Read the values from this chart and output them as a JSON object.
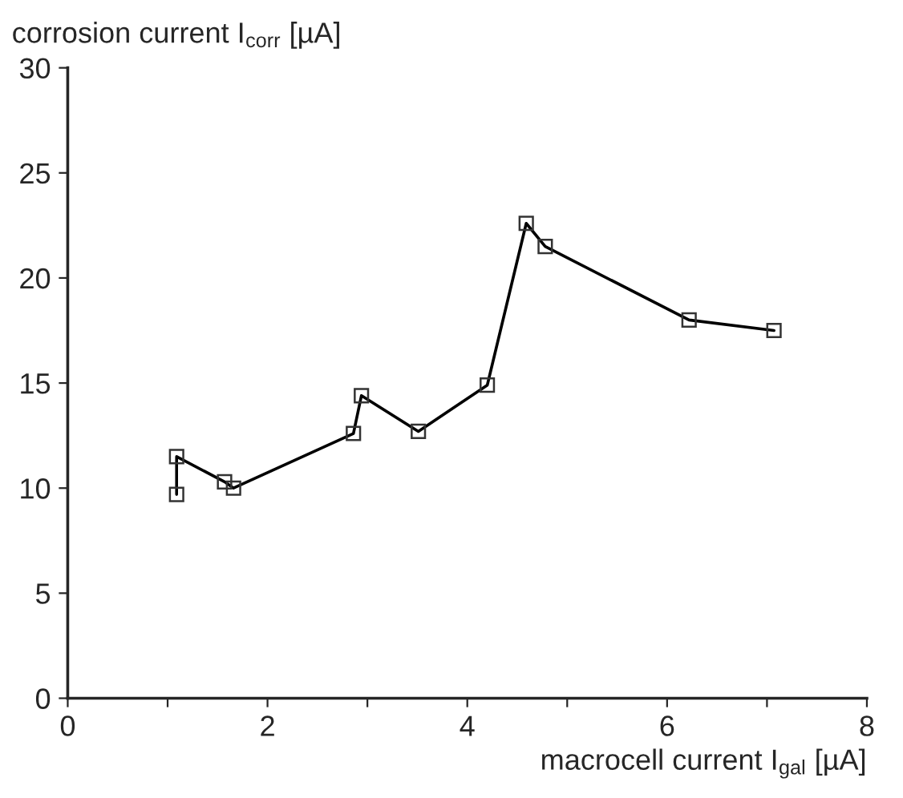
{
  "chart_data": {
    "type": "line",
    "xlabel": "macrocell current I$_{gal}$ [µA]",
    "ylabel": "corrosion current I$_{corr}$ [µA]",
    "x": [
      1.09,
      1.09,
      1.57,
      1.66,
      2.86,
      2.94,
      3.51,
      4.2,
      4.59,
      4.78,
      6.22,
      7.07
    ],
    "series": [
      {
        "color": "#000000",
        "values": [
          9.7,
          11.5,
          10.3,
          10.0,
          12.6,
          14.4,
          12.7,
          14.9,
          22.6,
          21.5,
          18.0,
          17.5
        ]
      }
    ],
    "xlim": [
      0,
      8
    ],
    "ylim": [
      0,
      30
    ],
    "xticks": [
      0,
      {
        "value": 1,
        "label": null
      },
      2,
      {
        "value": 3,
        "label": null
      },
      4,
      {
        "value": 5,
        "label": null
      },
      6,
      {
        "value": 7,
        "label": null
      },
      8
    ],
    "yticks": [
      0,
      5,
      10,
      15,
      20,
      25,
      30
    ],
    "marker": "square",
    "line_style": "solid",
    "grid": false
  }
}
